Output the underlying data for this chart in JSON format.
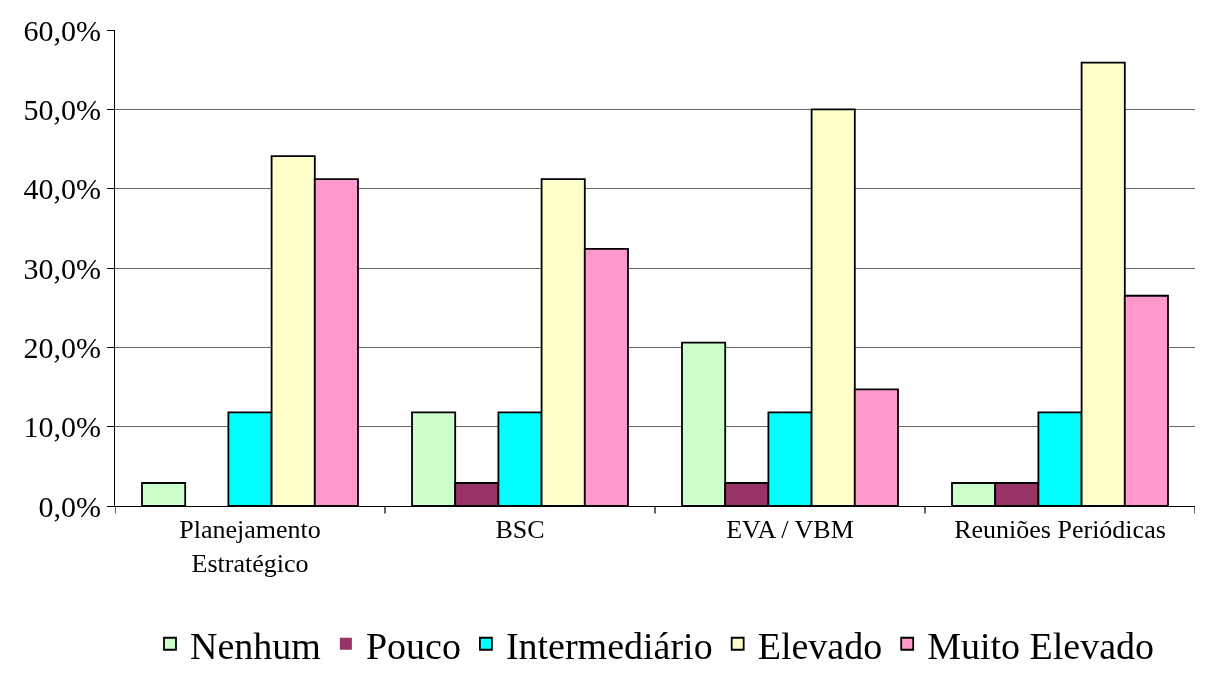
{
  "chart_data": {
    "type": "bar",
    "categories": [
      "Planejamento Estratégico",
      "BSC",
      "EVA / VBM",
      "Reuniões Periódicas"
    ],
    "series": [
      {
        "name": "Nenhum",
        "color": "#ccffcc",
        "values": [
          2.9,
          11.8,
          20.6,
          2.9
        ]
      },
      {
        "name": "Pouco",
        "color": "#993366",
        "values": [
          0,
          2.9,
          2.9,
          2.9
        ]
      },
      {
        "name": "Intermediário",
        "color": "#00ffff",
        "values": [
          11.8,
          11.8,
          11.8,
          11.8
        ]
      },
      {
        "name": "Elevado",
        "color": "#ffffcc",
        "values": [
          44.1,
          41.2,
          50.0,
          55.9
        ]
      },
      {
        "name": "Muito Elevado",
        "color": "#ff99cc",
        "values": [
          41.2,
          32.4,
          14.7,
          26.5
        ]
      }
    ],
    "ylim": [
      0,
      60
    ],
    "yticks": [
      {
        "value": 0,
        "label": "0,0%"
      },
      {
        "value": 10,
        "label": "10,0%"
      },
      {
        "value": 20,
        "label": "20,0%"
      },
      {
        "value": 30,
        "label": "30,0%"
      },
      {
        "value": 40,
        "label": "40,0%"
      },
      {
        "value": 50,
        "label": "50,0%"
      },
      {
        "value": 60,
        "label": "60,0%"
      }
    ],
    "grid": "y",
    "legend": "bottom"
  }
}
